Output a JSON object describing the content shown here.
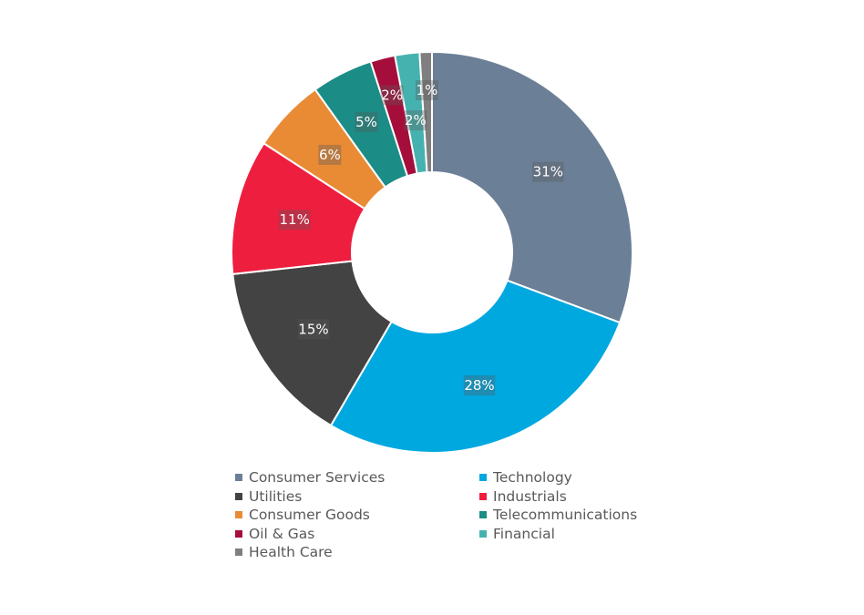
{
  "chart_data": {
    "type": "pie",
    "donut": true,
    "legend_position": "bottom",
    "categories": [
      "Consumer Services",
      "Technology",
      "Utilities",
      "Industrials",
      "Consumer Goods",
      "Telecommunications",
      "Oil & Gas",
      "Financial",
      "Health Care"
    ],
    "values": [
      31,
      28,
      15,
      11,
      6,
      5,
      2,
      2,
      1
    ],
    "labels": [
      "31%",
      "28%",
      "15%",
      "11%",
      "6%",
      "5%",
      "2%",
      "2%",
      "1%"
    ],
    "colors": [
      "#6b7f96",
      "#00a8e0",
      "#434343",
      "#ee1e3f",
      "#e98b35",
      "#1b8c86",
      "#a50e3b",
      "#46b2b0",
      "#7f7f7f"
    ]
  }
}
